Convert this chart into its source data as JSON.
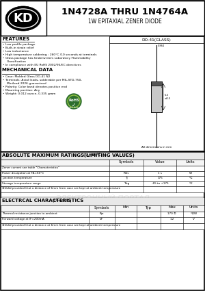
{
  "title_main": "1N4728A THRU 1N4764A",
  "title_sub": "1W EPITAXIAL ZENER DIODE",
  "bg_color": "#ffffff",
  "features_title": "FEATURES",
  "features": [
    "Low profile package",
    "Built-in strain relief",
    "Low inductance",
    "High temperature soldering : 260°C /10 seconds at terminals",
    "Glass package has Underwriters Laboratory Flammability",
    "  Classification",
    "In compliance with EU RoHS 2002/95/EC directives"
  ],
  "mech_title": "MECHANICAL DATA",
  "mech": [
    "Case: Molded Glass DO-41 N2",
    "Terminals: Axial leads, solderable per MIL-STD-750,",
    "  Minilead 2026 guaranteed",
    "Polarity: Color band denotes positive end",
    "Mounting position: Any",
    "Weight: 0.012 ounce, 0.335 gram"
  ],
  "package_label": "DO-41(GLASS)",
  "abs_title": "ABSOLUTE MAXIMUM RATINGS(LIMITING VALUES)",
  "abs_title2": "(TA=25℃)",
  "abs_rows": [
    [
      "Zener current see table \"Characteristics\"",
      "",
      "",
      ""
    ],
    [
      "Power dissipation at TA=60°C",
      "Pdis",
      "1 s",
      "W"
    ],
    [
      "Junction temperature",
      "Tj",
      "175",
      "℃"
    ],
    [
      "Storage temperature range",
      "Tstg",
      "-65 to +175",
      "℃"
    ],
    [
      "①Valid provided that a distance of 6mm from case are kept at ambient temperature",
      "",
      "",
      ""
    ]
  ],
  "elec_title": "ELECTRCAL CHARACTERISTICS",
  "elec_title2": "(TA=25℃)",
  "elec_rows": [
    [
      "Thermal resistance junction to ambient",
      "Rja",
      "",
      "",
      "170 ①",
      "℃/W"
    ],
    [
      "Forward voltage at IF=200mA",
      "VF",
      "",
      "",
      "1.2",
      "V"
    ],
    [
      "①Valid provided that a distance at 6mm from case are kept at ambient temperature",
      "",
      "",
      "",
      "",
      ""
    ]
  ],
  "watermark_text": "ЭЛЕКТРОННЫЙ ПОРТАЛ",
  "watermark_color": "#dddddd"
}
